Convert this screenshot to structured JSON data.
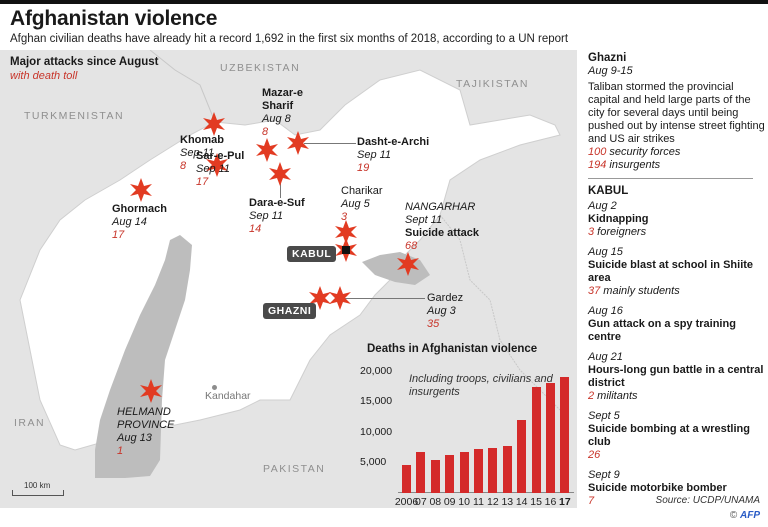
{
  "header": {
    "title": "Afghanistan violence",
    "subtitle": "Afghan civilian deaths have already hit a record 1,692 in the first six months of 2018, according to a UN report"
  },
  "map": {
    "legend_title": "Major attacks since August",
    "legend_subtitle": "with death toll",
    "countries": [
      "UZBEKISTAN",
      "TAJIKISTAN",
      "TURKMENISTAN",
      "IRAN",
      "PAKISTAN"
    ],
    "tags": {
      "kabul": "KABUL",
      "ghazni": "GHAZNI"
    },
    "kandahar": "Kandahar",
    "scale": "100 km",
    "attacks": [
      {
        "name": "Mazar-e",
        "name2": "Sharif",
        "date": "Aug 8",
        "toll": "8"
      },
      {
        "name": "Khomab",
        "date": "Sep 11",
        "toll": "8"
      },
      {
        "name": "Dasht-e-Archi",
        "date": "Sep 11",
        "toll": "19"
      },
      {
        "name": "Sar-e-Pul",
        "date": "Sep 11",
        "toll": "17"
      },
      {
        "name": "Charikar",
        "date": "Aug 5",
        "toll": "3"
      },
      {
        "name": "Dara-e-Suf",
        "date": "Sep 11",
        "toll": "14"
      },
      {
        "name": "Ghormach",
        "date": "Aug 14",
        "toll": "17"
      },
      {
        "region": "NANGARHAR",
        "date": "Sept 11",
        "name": "Suicide attack",
        "toll": "68"
      },
      {
        "name": "Gardez",
        "date": "Aug 3",
        "toll": "35"
      },
      {
        "region": "HELMAND",
        "region2": "PROVINCE",
        "date": "Aug 13",
        "toll": "1"
      }
    ],
    "colors": {
      "marker": "#e23b22",
      "land_neighbor": "#e4e4e4",
      "afghanistan": "#ffffff",
      "province": "#bdbdbd"
    }
  },
  "chart_data": {
    "type": "bar",
    "title": "Deaths in Afghanistan violence",
    "annotation": "Including troops, civilians and insurgents",
    "categories": [
      "2006",
      "07",
      "08",
      "09",
      "10",
      "11",
      "12",
      "13",
      "14",
      "15",
      "16",
      "17"
    ],
    "values": [
      4700,
      6700,
      5400,
      6200,
      6800,
      7200,
      7500,
      7800,
      12100,
      17500,
      18200,
      19200
    ],
    "yticks": [
      "20,000",
      "15,000",
      "10,000",
      "5,000"
    ],
    "ylim": [
      0,
      20000
    ],
    "xlabel": "",
    "ylabel": "",
    "bar_color": "#d42a2a"
  },
  "sidebar": {
    "ghazni": {
      "title": "Ghazni",
      "date": "Aug 9-15",
      "body": "Taliban stormed the provincial capital and held large parts of the city for several days until being pushed out by intense street fighting and US air strikes",
      "toll1_num": "100",
      "toll1_txt": " security forces",
      "toll2_num": "194",
      "toll2_txt": " insurgents"
    },
    "kabul_title": "KABUL",
    "kabul_events": [
      {
        "date": "Aug 2",
        "what": "Kidnapping",
        "num": "3",
        "txt": " foreigners"
      },
      {
        "date": "Aug 15",
        "what": "Suicide blast at school in Shiite area",
        "num": "37",
        "txt": " mainly students"
      },
      {
        "date": "Aug 16",
        "what": "Gun attack on a spy training centre",
        "num": "",
        "txt": ""
      },
      {
        "date": "Aug 21",
        "what": "Hours-long gun battle in a central district",
        "num": "2",
        "txt": " militants"
      },
      {
        "date": "Sept 5",
        "what": "Suicide bombing at a wrestling club",
        "num": "26",
        "txt": ""
      },
      {
        "date": "Sept 9",
        "what": "Suicide motorbike bomber",
        "num": "7",
        "txt": ""
      }
    ]
  },
  "footer": {
    "source": "Source: UCDP/UNAMA",
    "copyright": "©",
    "agency": "AFP"
  }
}
